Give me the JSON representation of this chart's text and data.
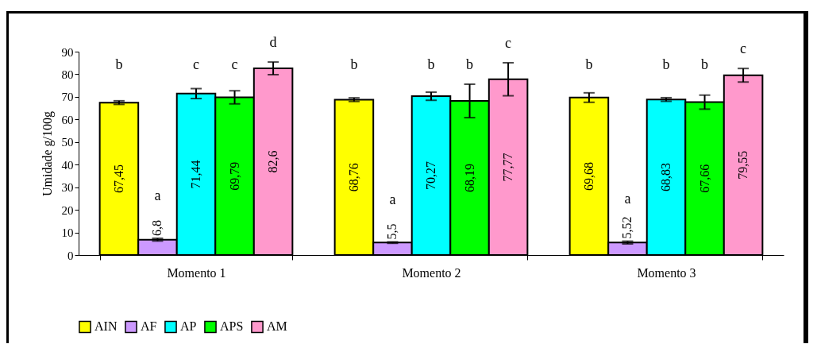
{
  "chart_data": {
    "type": "bar",
    "categories": [
      "Momento 1",
      "Momento 2",
      "Momento 3"
    ],
    "ylabel": "Umidade g/100g",
    "ylim": [
      0,
      90
    ],
    "yticks": [
      0,
      10,
      20,
      30,
      40,
      50,
      60,
      70,
      80,
      90
    ],
    "series": [
      {
        "name": "AIN",
        "color": "#ffff00",
        "values": [
          67.45,
          68.76,
          69.68
        ],
        "value_labels": [
          "67,45",
          "68,76",
          "69,68"
        ],
        "errors": [
          0.8,
          0.8,
          2.1
        ]
      },
      {
        "name": "AF",
        "color": "#cc99ff",
        "values": [
          6.8,
          5.5,
          5.52
        ],
        "value_labels": [
          "6,8",
          "5,5",
          "5,52"
        ],
        "errors": [
          0.6,
          0.3,
          0.6
        ]
      },
      {
        "name": "AP",
        "color": "#00ffff",
        "values": [
          71.44,
          70.27,
          68.83
        ],
        "value_labels": [
          "71,44",
          "70,27",
          "68,83"
        ],
        "errors": [
          2.2,
          1.8,
          0.8
        ]
      },
      {
        "name": "APS",
        "color": "#00ff00",
        "values": [
          69.79,
          68.19,
          67.66
        ],
        "value_labels": [
          "69,79",
          "68,19",
          "67,66"
        ],
        "errors": [
          2.9,
          7.4,
          3.1
        ]
      },
      {
        "name": "AM",
        "color": "#ff99cc",
        "values": [
          82.6,
          77.77,
          79.55
        ],
        "value_labels": [
          "82,6",
          "77,77",
          "79,55"
        ],
        "errors": [
          2.8,
          7.3,
          3.0
        ]
      }
    ],
    "annotations": [
      "b",
      "a",
      "c",
      "c",
      "d",
      "b",
      "a",
      "b",
      "b",
      "c",
      "b",
      "a",
      "b",
      "b",
      "c"
    ],
    "legend": "bottom",
    "grid": false
  }
}
